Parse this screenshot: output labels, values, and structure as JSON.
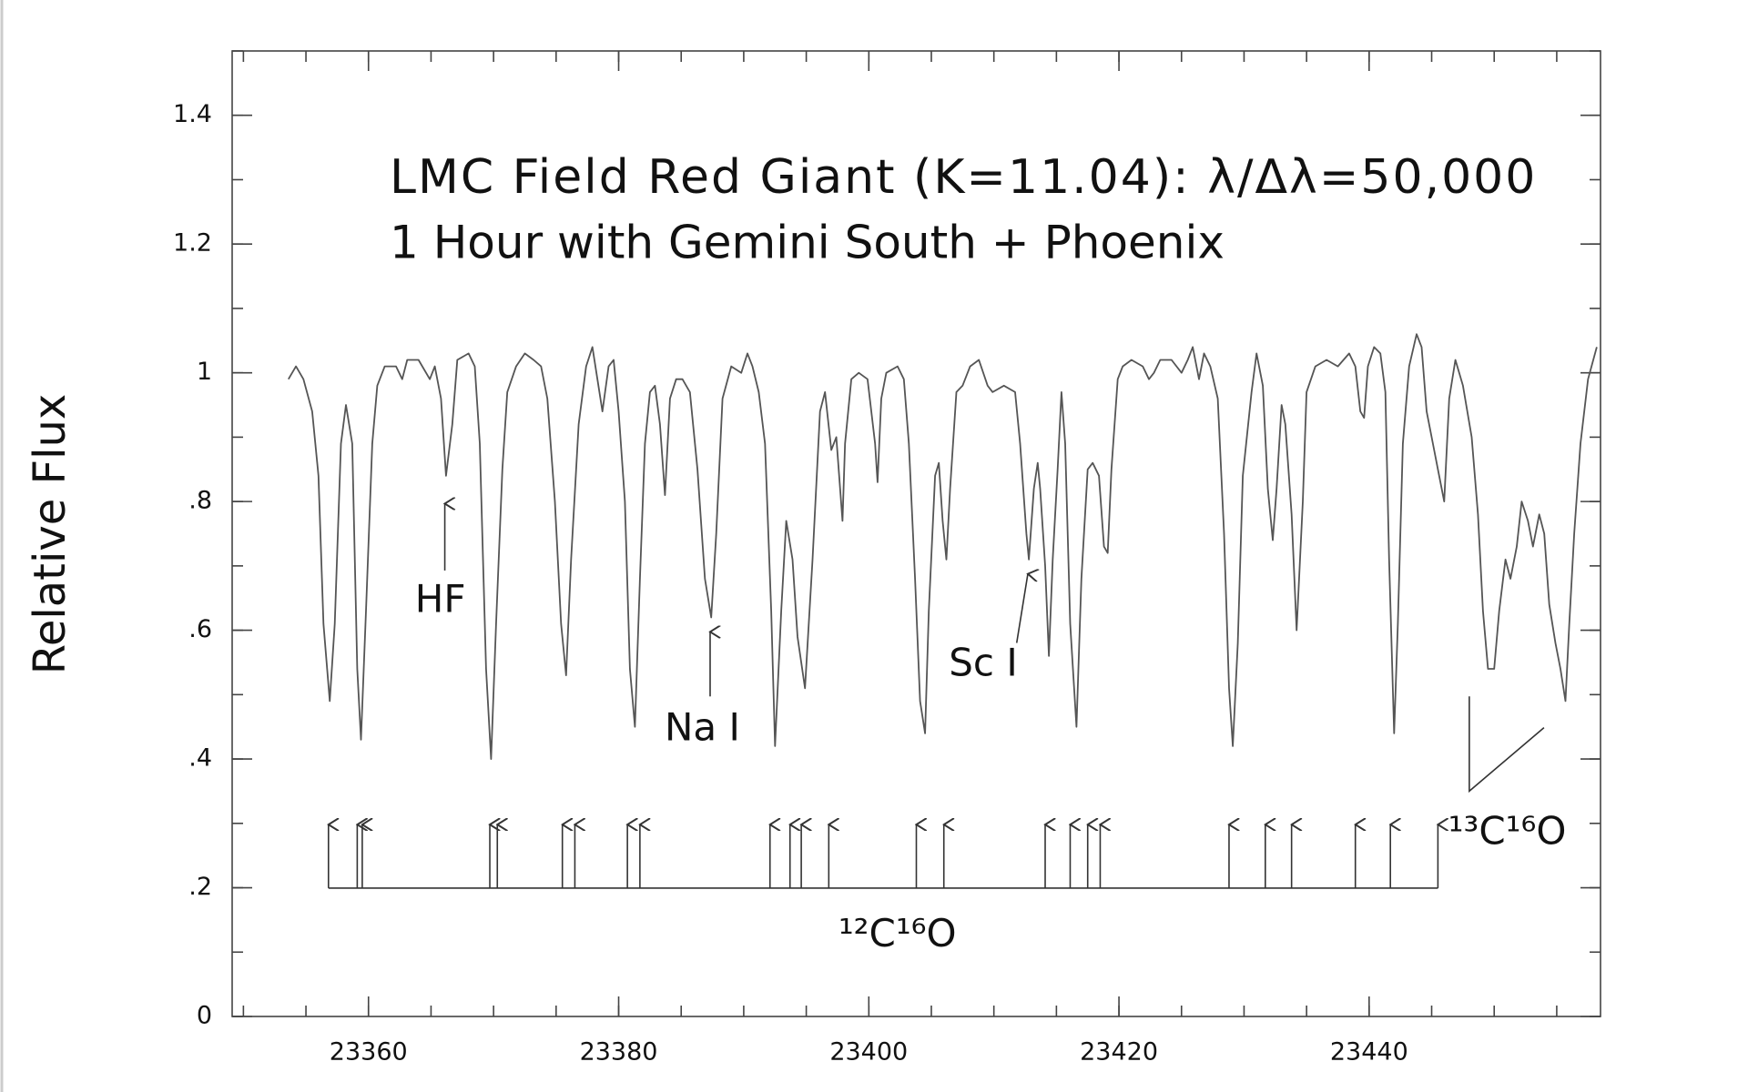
{
  "chart_data": {
    "type": "line",
    "title": "LMC Field Red Giant (K=11.04): λ/Δλ=50,000",
    "subtitle": "1 Hour with Gemini South + Phoenix",
    "y_label": "Relative Flux",
    "xlim": [
      23349.1,
      23458.5
    ],
    "ylim": [
      0,
      1.5
    ],
    "xticks": [
      23360,
      23380,
      23400,
      23420,
      23440
    ],
    "yticks": [
      0,
      {
        "value": 0.2,
        "label": ".2"
      },
      {
        "value": 0.4,
        "label": ".4"
      },
      {
        "value": 0.6,
        "label": ".6"
      },
      {
        "value": 0.8,
        "label": ".8"
      },
      1,
      1.2,
      1.4
    ],
    "series": [
      {
        "name": "Relative Flux",
        "color": "#555555",
        "x": [
          23353.6,
          23354.2,
          23354.8,
          23355.5,
          23356.0,
          23356.4,
          23356.9,
          23357.3,
          23357.8,
          23358.2,
          23358.7,
          23359.1,
          23359.4,
          23359.8,
          23360.3,
          23360.7,
          23361.3,
          23362.2,
          23362.7,
          23363.1,
          23364.0,
          23364.9,
          23365.3,
          23365.8,
          23366.2,
          23366.7,
          23367.1,
          23368.0,
          23368.5,
          23368.9,
          23369.4,
          23369.8,
          23370.2,
          23370.7,
          23371.1,
          23371.8,
          23372.5,
          23373.2,
          23373.8,
          23374.3,
          23374.9,
          23375.4,
          23375.8,
          23376.2,
          23376.8,
          23377.4,
          23377.9,
          23378.3,
          23378.7,
          23379.2,
          23379.6,
          23380.0,
          23380.5,
          23380.9,
          23381.3,
          23381.7,
          23382.1,
          23382.5,
          23382.9,
          23383.3,
          23383.7,
          23384.1,
          23384.6,
          23385.1,
          23385.7,
          23386.3,
          23386.9,
          23387.4,
          23387.8,
          23388.3,
          23389.0,
          23389.8,
          23390.3,
          23390.7,
          23391.2,
          23391.7,
          23392.2,
          23392.5,
          23393.0,
          23393.4,
          23393.9,
          23394.3,
          23394.9,
          23395.5,
          23396.1,
          23396.5,
          23397.0,
          23397.4,
          23397.9,
          23398.1,
          23398.6,
          23399.2,
          23399.9,
          23400.5,
          23400.7,
          23401.0,
          23401.4,
          23402.3,
          23402.8,
          23403.2,
          23403.7,
          23404.1,
          23404.5,
          23404.8,
          23405.3,
          23405.6,
          23405.9,
          23406.2,
          23406.5,
          23407.0,
          23407.5,
          23408.1,
          23408.8,
          23409.5,
          23409.9,
          23410.8,
          23411.7,
          23412.1,
          23412.6,
          23412.8,
          23413.2,
          23413.5,
          23413.7,
          23414.1,
          23414.4,
          23414.7,
          23415.1,
          23415.4,
          23415.7,
          23416.1,
          23416.6,
          23417.0,
          23417.5,
          23417.9,
          23418.4,
          23418.8,
          23419.1,
          23419.4,
          23419.9,
          23420.3,
          23421.0,
          23421.9,
          23422.4,
          23422.8,
          23423.3,
          23424.2,
          23425.0,
          23425.5,
          23425.9,
          23426.4,
          23426.8,
          23427.3,
          23427.9,
          23428.4,
          23428.8,
          23429.1,
          23429.5,
          23429.9,
          23430.6,
          23431.0,
          23431.5,
          23431.9,
          23432.3,
          23432.6,
          23433.0,
          23433.3,
          23433.8,
          23434.2,
          23434.7,
          23435.0,
          23435.7,
          23436.6,
          23437.5,
          23438.4,
          23438.9,
          23439.3,
          23439.6,
          23439.9,
          23440.4,
          23440.9,
          23441.3,
          23441.6,
          23442.0,
          23442.3,
          23442.7,
          23443.2,
          23443.8,
          23444.2,
          23444.6,
          23445.1,
          23445.5,
          23446.0,
          23446.4,
          23446.9,
          23447.5,
          23448.2,
          23448.7,
          23449.1,
          23449.5,
          23450.0,
          23450.4,
          23450.9,
          23451.3,
          23451.8,
          23452.2,
          23452.7,
          23453.1,
          23453.6,
          23454.0,
          23454.4,
          23454.9,
          23455.3,
          23455.7,
          23456.0,
          23456.4,
          23456.9,
          23457.5,
          23458.2
        ],
        "values": [
          0.99,
          1.01,
          0.99,
          0.94,
          0.84,
          0.61,
          0.49,
          0.61,
          0.89,
          0.95,
          0.89,
          0.54,
          0.43,
          0.63,
          0.89,
          0.98,
          1.01,
          1.01,
          0.99,
          1.02,
          1.02,
          0.99,
          1.01,
          0.96,
          0.84,
          0.92,
          1.02,
          1.03,
          1.01,
          0.89,
          0.54,
          0.4,
          0.61,
          0.85,
          0.97,
          1.01,
          1.03,
          1.02,
          1.01,
          0.96,
          0.8,
          0.61,
          0.53,
          0.71,
          0.92,
          1.01,
          1.04,
          0.99,
          0.94,
          1.01,
          1.02,
          0.94,
          0.8,
          0.54,
          0.45,
          0.68,
          0.89,
          0.97,
          0.98,
          0.92,
          0.81,
          0.96,
          0.99,
          0.99,
          0.97,
          0.85,
          0.68,
          0.62,
          0.75,
          0.96,
          1.01,
          1.0,
          1.03,
          1.01,
          0.97,
          0.89,
          0.63,
          0.42,
          0.63,
          0.77,
          0.71,
          0.59,
          0.51,
          0.71,
          0.94,
          0.97,
          0.88,
          0.9,
          0.77,
          0.89,
          0.99,
          1.0,
          0.99,
          0.89,
          0.83,
          0.96,
          1.0,
          1.01,
          0.99,
          0.89,
          0.68,
          0.49,
          0.44,
          0.63,
          0.84,
          0.86,
          0.77,
          0.71,
          0.82,
          0.97,
          0.98,
          1.01,
          1.02,
          0.98,
          0.97,
          0.98,
          0.97,
          0.89,
          0.75,
          0.71,
          0.82,
          0.86,
          0.82,
          0.7,
          0.56,
          0.71,
          0.85,
          0.97,
          0.89,
          0.61,
          0.45,
          0.68,
          0.85,
          0.86,
          0.84,
          0.73,
          0.72,
          0.85,
          0.99,
          1.01,
          1.02,
          1.01,
          0.99,
          1.0,
          1.02,
          1.02,
          1.0,
          1.02,
          1.04,
          0.99,
          1.03,
          1.01,
          0.96,
          0.75,
          0.51,
          0.42,
          0.58,
          0.84,
          0.97,
          1.03,
          0.98,
          0.82,
          0.74,
          0.82,
          0.95,
          0.92,
          0.78,
          0.6,
          0.8,
          0.97,
          1.01,
          1.02,
          1.01,
          1.03,
          1.01,
          0.94,
          0.93,
          1.01,
          1.04,
          1.03,
          0.97,
          0.71,
          0.44,
          0.61,
          0.89,
          1.01,
          1.06,
          1.04,
          0.94,
          0.89,
          0.85,
          0.8,
          0.96,
          1.02,
          0.98,
          0.9,
          0.78,
          0.63,
          0.54,
          0.54,
          0.63,
          0.71,
          0.68,
          0.73,
          0.8,
          0.77,
          0.73,
          0.78,
          0.75,
          0.64,
          0.58,
          0.54,
          0.49,
          0.61,
          0.75,
          0.89,
          0.99,
          1.04
        ]
      }
    ],
    "annotations": [
      {
        "text": "HF"
      },
      {
        "text": "Na I"
      },
      {
        "text": "Sc I"
      }
    ],
    "co_12": {
      "label": "¹²C¹⁶O",
      "lines": [
        23356.8,
        23359.1,
        23359.5,
        23369.7,
        23370.3,
        23375.5,
        23376.5,
        23380.7,
        23381.7,
        23392.1,
        23393.7,
        23394.6,
        23396.8,
        23403.8,
        23406.0,
        23414.1,
        23416.1,
        23417.5,
        23418.5,
        23428.8,
        23431.7,
        23433.8,
        23438.9,
        23441.7,
        23445.5
      ]
    },
    "co_13": {
      "label": "¹³C¹⁶O"
    }
  }
}
